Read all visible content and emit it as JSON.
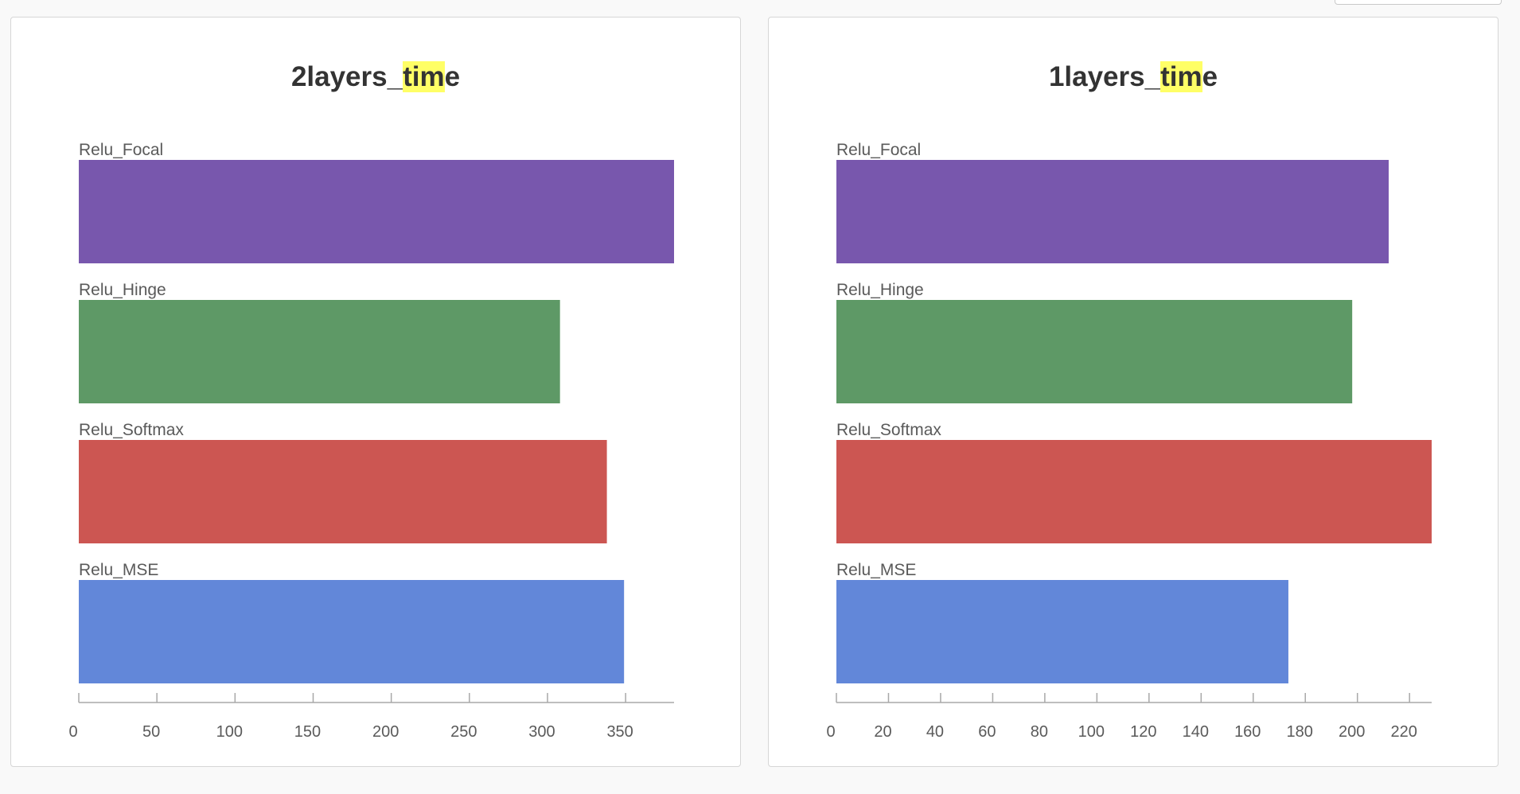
{
  "chart_data": [
    {
      "type": "bar",
      "orientation": "horizontal",
      "title": "2layers_time",
      "title_highlight": "tim",
      "xlabel": "",
      "ylabel": "",
      "categories": [
        "Relu_Focal",
        "Relu_Hinge",
        "Relu_Softmax",
        "Relu_MSE"
      ],
      "values": [
        381,
        308,
        338,
        349
      ],
      "colors": [
        "#7857ad",
        "#5e9966",
        "#cc5652",
        "#6287d9"
      ],
      "xlim": [
        0,
        381
      ],
      "xticks": [
        0,
        50,
        100,
        150,
        200,
        250,
        300,
        350
      ],
      "grid": false
    },
    {
      "type": "bar",
      "orientation": "horizontal",
      "title": "1layers_time",
      "title_highlight": "tim",
      "xlabel": "",
      "ylabel": "",
      "categories": [
        "Relu_Focal",
        "Relu_Hinge",
        "Relu_Softmax",
        "Relu_MSE"
      ],
      "values": [
        212,
        198,
        228.5,
        173.5
      ],
      "colors": [
        "#7857ad",
        "#5e9966",
        "#cc5652",
        "#6287d9"
      ],
      "xlim": [
        0,
        228.5
      ],
      "xticks": [
        0,
        20,
        40,
        60,
        80,
        100,
        120,
        140,
        160,
        180,
        200,
        220
      ],
      "grid": false
    }
  ]
}
